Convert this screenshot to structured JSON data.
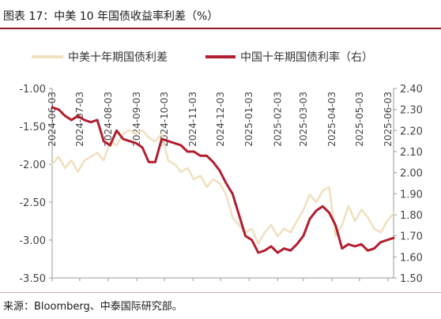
{
  "header": {
    "title": "图表 17：中美 10 年国债收益率利差（%）"
  },
  "footer": {
    "source": "来源：Bloomberg、中泰国际研究部。"
  },
  "chart_data": {
    "type": "line",
    "title": "图表 17：中美 10 年国债收益率利差（%）",
    "x_tick_labels": [
      "2024-06-03",
      "2024-07-03",
      "2024-08-03",
      "2024-09-03",
      "2024-10-03",
      "2024-11-03",
      "2024-12-03",
      "2025-01-03",
      "2025-02-03",
      "2025-03-03",
      "2025-04-03",
      "2025-05-03",
      "2025-06-03"
    ],
    "y_left": {
      "ticks": [
        "-1.00",
        "-1.50",
        "-2.00",
        "-2.50",
        "-3.00",
        "-3.50"
      ],
      "range": [
        -3.5,
        -1.0
      ]
    },
    "y_right": {
      "ticks": [
        "2.40",
        "2.30",
        "2.20",
        "2.10",
        "2.00",
        "1.90",
        "1.80",
        "1.70",
        "1.60",
        "1.50"
      ],
      "range": [
        1.5,
        2.4
      ]
    },
    "legend_position": "top",
    "grid": false,
    "series": [
      {
        "name": "中美十年期国债利差",
        "axis": "left",
        "color": "#efe0bf",
        "x": [
          "2024-06-03",
          "2024-06-10",
          "2024-06-17",
          "2024-06-24",
          "2024-07-01",
          "2024-07-08",
          "2024-07-15",
          "2024-07-22",
          "2024-07-29",
          "2024-08-05",
          "2024-08-12",
          "2024-08-19",
          "2024-08-26",
          "2024-09-02",
          "2024-09-09",
          "2024-09-16",
          "2024-09-23",
          "2024-09-30",
          "2024-10-07",
          "2024-10-14",
          "2024-10-21",
          "2024-10-28",
          "2024-11-04",
          "2024-11-11",
          "2024-11-18",
          "2024-11-25",
          "2024-12-02",
          "2024-12-09",
          "2024-12-16",
          "2024-12-23",
          "2024-12-30",
          "2025-01-06",
          "2025-01-13",
          "2025-01-20",
          "2025-01-27",
          "2025-02-03",
          "2025-02-10",
          "2025-02-17",
          "2025-02-24",
          "2025-03-03",
          "2025-03-10",
          "2025-03-17",
          "2025-03-24",
          "2025-03-31",
          "2025-04-07",
          "2025-04-14",
          "2025-04-21",
          "2025-04-28",
          "2025-05-05",
          "2025-05-12",
          "2025-05-19",
          "2025-05-26",
          "2025-06-02",
          "2025-06-09"
        ],
        "values": [
          -2.0,
          -1.9,
          -2.05,
          -1.95,
          -2.1,
          -1.95,
          -1.9,
          -1.85,
          -1.95,
          -1.7,
          -1.75,
          -1.6,
          -1.55,
          -1.6,
          -1.55,
          -1.65,
          -1.7,
          -1.6,
          -1.95,
          -2.0,
          -2.1,
          -2.05,
          -2.2,
          -2.15,
          -2.3,
          -2.2,
          -2.25,
          -2.4,
          -2.7,
          -2.8,
          -2.9,
          -2.85,
          -3.05,
          -2.9,
          -2.8,
          -2.95,
          -2.85,
          -2.9,
          -2.75,
          -2.6,
          -2.4,
          -2.5,
          -2.35,
          -2.3,
          -2.95,
          -2.8,
          -2.55,
          -2.75,
          -2.6,
          -2.7,
          -2.85,
          -2.9,
          -2.75,
          -2.65
        ]
      },
      {
        "name": "中国十年期国债利率（右）",
        "axis": "right",
        "color": "#b01e2f",
        "x": [
          "2024-06-03",
          "2024-06-10",
          "2024-06-17",
          "2024-06-24",
          "2024-07-01",
          "2024-07-08",
          "2024-07-15",
          "2024-07-22",
          "2024-07-29",
          "2024-08-05",
          "2024-08-12",
          "2024-08-19",
          "2024-08-26",
          "2024-09-02",
          "2024-09-09",
          "2024-09-16",
          "2024-09-23",
          "2024-09-30",
          "2024-10-07",
          "2024-10-14",
          "2024-10-21",
          "2024-10-28",
          "2024-11-04",
          "2024-11-11",
          "2024-11-18",
          "2024-11-25",
          "2024-12-02",
          "2024-12-09",
          "2024-12-16",
          "2024-12-23",
          "2024-12-30",
          "2025-01-06",
          "2025-01-13",
          "2025-01-20",
          "2025-01-27",
          "2025-02-03",
          "2025-02-10",
          "2025-02-17",
          "2025-02-24",
          "2025-03-03",
          "2025-03-10",
          "2025-03-17",
          "2025-03-24",
          "2025-03-31",
          "2025-04-07",
          "2025-04-14",
          "2025-04-21",
          "2025-04-28",
          "2025-05-05",
          "2025-05-12",
          "2025-05-19",
          "2025-05-26",
          "2025-06-02",
          "2025-06-09"
        ],
        "values": [
          2.31,
          2.3,
          2.27,
          2.25,
          2.27,
          2.25,
          2.24,
          2.25,
          2.15,
          2.13,
          2.2,
          2.16,
          2.15,
          2.14,
          2.12,
          2.05,
          2.05,
          2.16,
          2.15,
          2.14,
          2.13,
          2.1,
          2.1,
          2.08,
          2.08,
          2.05,
          2.01,
          1.95,
          1.9,
          1.8,
          1.7,
          1.68,
          1.62,
          1.63,
          1.65,
          1.62,
          1.64,
          1.63,
          1.66,
          1.7,
          1.78,
          1.82,
          1.84,
          1.81,
          1.75,
          1.64,
          1.66,
          1.65,
          1.66,
          1.63,
          1.64,
          1.67,
          1.68,
          1.69
        ]
      }
    ]
  }
}
